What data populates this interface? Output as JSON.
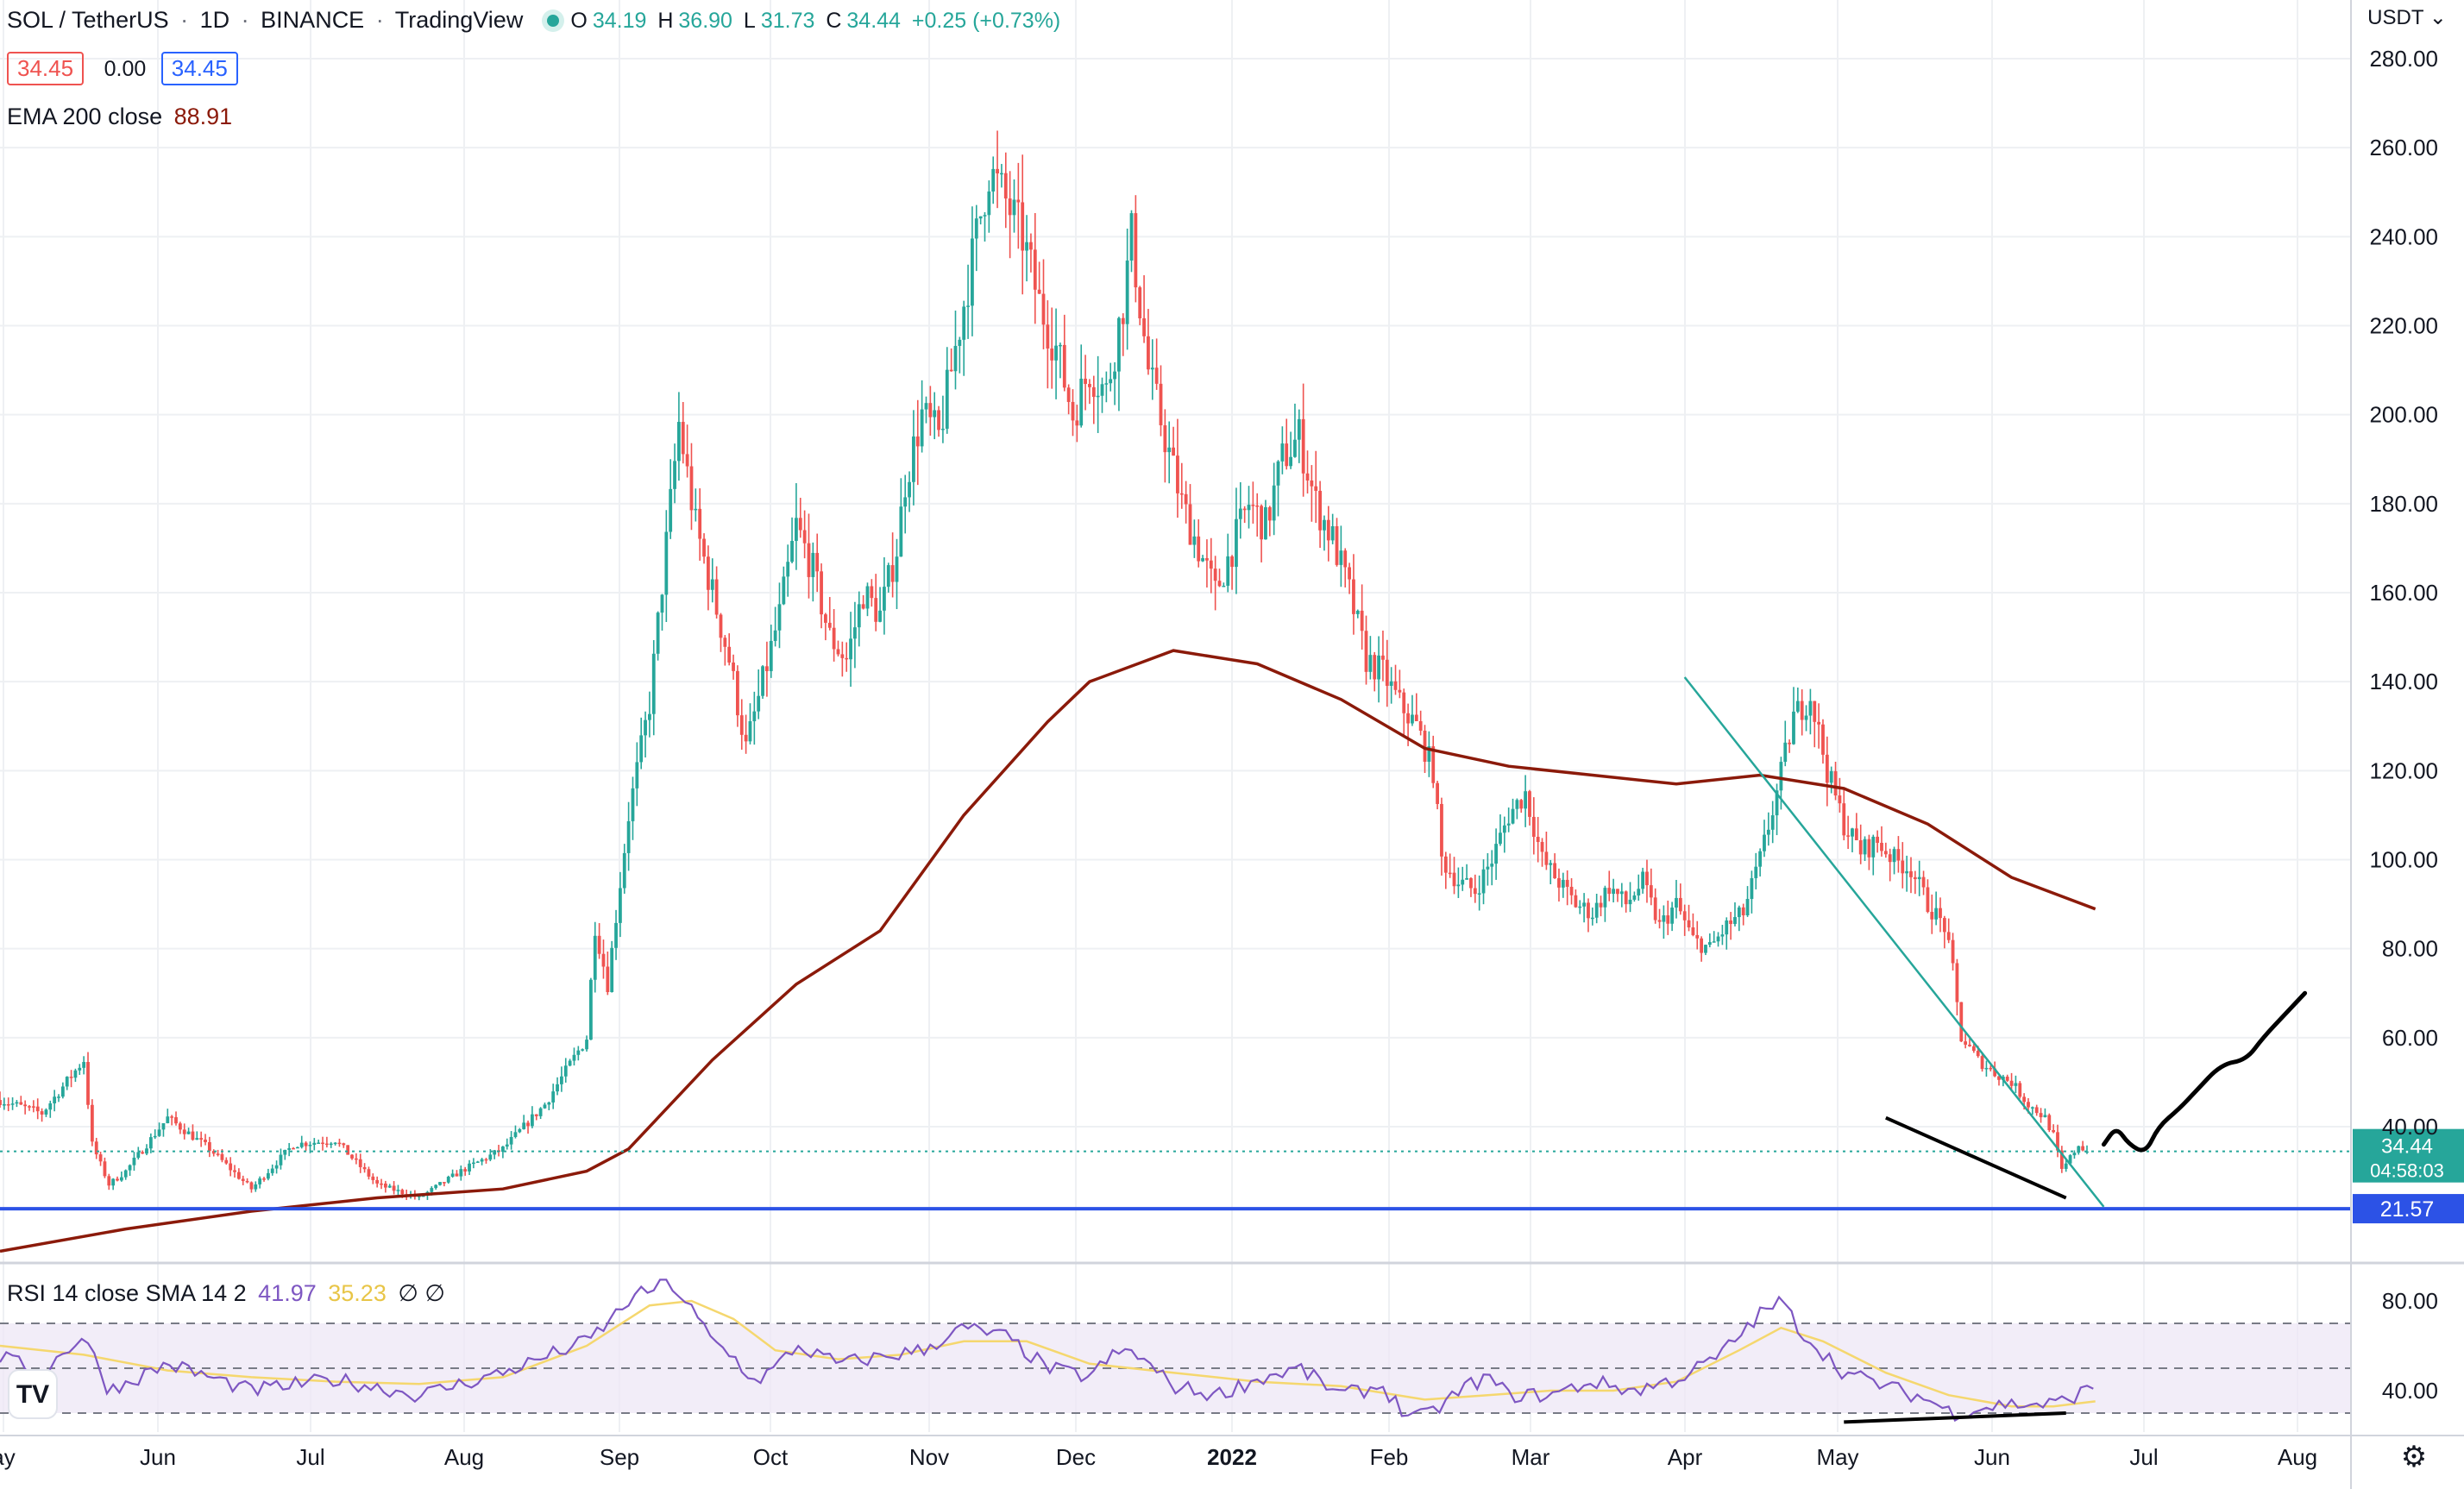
{
  "header": {
    "symbol": "SOL / TetherUS",
    "interval": "1D",
    "exchange": "BINANCE",
    "source": "TradingView",
    "ohlc": {
      "o_label": "O",
      "o": "34.19",
      "h_label": "H",
      "h": "36.90",
      "l_label": "L",
      "l": "31.73",
      "c_label": "C",
      "c": "34.44",
      "change": "+0.25 (+0.73%)"
    },
    "bid": "34.45",
    "spread": "0.00",
    "ask": "34.45"
  },
  "ema_legend": {
    "label": "EMA 200 close",
    "value": "88.91"
  },
  "rsi_legend": {
    "label": "RSI 14 close SMA 14 2",
    "value1": "41.97",
    "value2": "35.23",
    "extra": "∅ ∅"
  },
  "price_axis": {
    "currency": "USDT",
    "current_price": "34.44",
    "countdown": "04:58:03",
    "support_label": "21.57"
  },
  "colors": {
    "up": "#26a69a",
    "down": "#ef5350",
    "ema": "#8b1a0a",
    "support": "#2c52e6",
    "trend": "#26a69a",
    "rsi": "#7e57c2",
    "rsi_sma": "#f5d76e",
    "projection": "#000000"
  },
  "chart_data": [
    {
      "type": "candlestick",
      "title": "SOL / TetherUS 1D BINANCE",
      "x_ticks": [
        "ay",
        "Jun",
        "Jul",
        "Aug",
        "Sep",
        "Oct",
        "Nov",
        "Dec",
        "2022",
        "Feb",
        "Mar",
        "Apr",
        "May",
        "Jun",
        "Jul",
        "Aug"
      ],
      "y_ticks": [
        40,
        60,
        80,
        100,
        120,
        140,
        160,
        180,
        200,
        220,
        240,
        260,
        280
      ],
      "ylim": [
        12,
        288
      ],
      "series": [
        {
          "name": "SOL / TetherUS",
          "close_path": [
            [
              0,
              46
            ],
            [
              10,
              43
            ],
            [
              20,
              55
            ],
            [
              22,
              36
            ],
            [
              26,
              27
            ],
            [
              30,
              30
            ],
            [
              40,
              42
            ],
            [
              50,
              35
            ],
            [
              60,
              26
            ],
            [
              70,
              36
            ],
            [
              80,
              37
            ],
            [
              90,
              27
            ],
            [
              100,
              24
            ],
            [
              110,
              30
            ],
            [
              120,
              35
            ],
            [
              130,
              45
            ],
            [
              140,
              60
            ],
            [
              142,
              85
            ],
            [
              145,
              72
            ],
            [
              150,
              110
            ],
            [
              155,
              135
            ],
            [
              160,
              180
            ],
            [
              162,
              198
            ],
            [
              166,
              175
            ],
            [
              170,
              160
            ],
            [
              174,
              145
            ],
            [
              178,
              125
            ],
            [
              182,
              140
            ],
            [
              186,
              155
            ],
            [
              190,
              175
            ],
            [
              194,
              165
            ],
            [
              198,
              150
            ],
            [
              202,
              145
            ],
            [
              206,
              160
            ],
            [
              210,
              155
            ],
            [
              214,
              170
            ],
            [
              216,
              185
            ],
            [
              220,
              200
            ],
            [
              224,
              195
            ],
            [
              228,
              215
            ],
            [
              232,
              235
            ],
            [
              236,
              255
            ],
            [
              240,
              248
            ],
            [
              244,
              240
            ],
            [
              248,
              225
            ],
            [
              252,
              215
            ],
            [
              256,
              200
            ],
            [
              260,
              210
            ],
            [
              264,
              205
            ],
            [
              268,
              225
            ],
            [
              270,
              240
            ],
            [
              274,
              210
            ],
            [
              278,
              195
            ],
            [
              282,
              180
            ],
            [
              286,
              170
            ],
            [
              290,
              160
            ],
            [
              294,
              170
            ],
            [
              298,
              180
            ],
            [
              302,
              175
            ],
            [
              306,
              190
            ],
            [
              310,
              195
            ],
            [
              314,
              180
            ],
            [
              318,
              172
            ],
            [
              322,
              160
            ],
            [
              326,
              145
            ],
            [
              330,
              142
            ],
            [
              334,
              135
            ],
            [
              338,
              130
            ],
            [
              342,
              120
            ],
            [
              344,
              100
            ],
            [
              348,
              95
            ],
            [
              352,
              93
            ],
            [
              356,
              100
            ],
            [
              360,
              110
            ],
            [
              364,
              115
            ],
            [
              368,
              100
            ],
            [
              372,
              95
            ],
            [
              376,
              90
            ],
            [
              380,
              88
            ],
            [
              384,
              94
            ],
            [
              388,
              90
            ],
            [
              392,
              95
            ],
            [
              396,
              85
            ],
            [
              400,
              90
            ],
            [
              404,
              82
            ],
            [
              408,
              80
            ],
            [
              412,
              85
            ],
            [
              416,
              88
            ],
            [
              420,
              100
            ],
            [
              424,
              115
            ],
            [
              428,
              132
            ],
            [
              432,
              137
            ],
            [
              436,
              120
            ],
            [
              440,
              108
            ],
            [
              444,
              102
            ],
            [
              448,
              104
            ],
            [
              452,
              100
            ],
            [
              456,
              98
            ],
            [
              460,
              90
            ],
            [
              464,
              85
            ],
            [
              466,
              75
            ],
            [
              468,
              60
            ],
            [
              472,
              55
            ],
            [
              476,
              52
            ],
            [
              480,
              50
            ],
            [
              484,
              45
            ],
            [
              488,
              42
            ],
            [
              490,
              38
            ],
            [
              492,
              30
            ],
            [
              494,
              33
            ],
            [
              496,
              36
            ],
            [
              498,
              34.44
            ]
          ]
        },
        {
          "name": "EMA 200 close",
          "values": [
            [
              0,
              12
            ],
            [
              30,
              17
            ],
            [
              60,
              21
            ],
            [
              90,
              24
            ],
            [
              120,
              26
            ],
            [
              140,
              30
            ],
            [
              150,
              35
            ],
            [
              160,
              45
            ],
            [
              170,
              55
            ],
            [
              190,
              72
            ],
            [
              210,
              84
            ],
            [
              230,
              110
            ],
            [
              250,
              131
            ],
            [
              260,
              140
            ],
            [
              280,
              147
            ],
            [
              300,
              144
            ],
            [
              320,
              136
            ],
            [
              340,
              125
            ],
            [
              360,
              121
            ],
            [
              380,
              119
            ],
            [
              400,
              117
            ],
            [
              420,
              119
            ],
            [
              440,
              116
            ],
            [
              460,
              108
            ],
            [
              480,
              96
            ],
            [
              500,
              88.91
            ]
          ]
        }
      ],
      "annotations": {
        "support": 21.57,
        "trendline": [
          [
            402,
            141
          ],
          [
            502,
            22
          ]
        ],
        "divergence": [
          [
            450,
            42
          ],
          [
            493,
            24
          ]
        ],
        "projection": [
          [
            502,
            36
          ],
          [
            505,
            40
          ],
          [
            508,
            36
          ],
          [
            512,
            34
          ],
          [
            515,
            40
          ],
          [
            520,
            44
          ],
          [
            524,
            48
          ],
          [
            530,
            54
          ],
          [
            536,
            55
          ],
          [
            540,
            60
          ],
          [
            545,
            65
          ],
          [
            550,
            70
          ]
        ]
      }
    },
    {
      "type": "line",
      "title": "RSI 14 close SMA 14 2",
      "y_ticks": [
        40,
        80
      ],
      "ylim": [
        20,
        100
      ],
      "bands": [
        30,
        50,
        70
      ],
      "series": [
        {
          "name": "RSI",
          "values": [
            [
              0,
              55
            ],
            [
              10,
              48
            ],
            [
              20,
              65
            ],
            [
              26,
              40
            ],
            [
              40,
              52
            ],
            [
              60,
              40
            ],
            [
              80,
              45
            ],
            [
              100,
              38
            ],
            [
              120,
              48
            ],
            [
              130,
              55
            ],
            [
              140,
              62
            ],
            [
              145,
              70
            ],
            [
              150,
              80
            ],
            [
              155,
              85
            ],
            [
              160,
              88
            ],
            [
              165,
              76
            ],
            [
              170,
              62
            ],
            [
              175,
              55
            ],
            [
              180,
              44
            ],
            [
              185,
              50
            ],
            [
              190,
              60
            ],
            [
              200,
              52
            ],
            [
              210,
              55
            ],
            [
              220,
              58
            ],
            [
              230,
              68
            ],
            [
              240,
              64
            ],
            [
              250,
              50
            ],
            [
              260,
              46
            ],
            [
              265,
              55
            ],
            [
              270,
              58
            ],
            [
              280,
              42
            ],
            [
              290,
              38
            ],
            [
              300,
              45
            ],
            [
              310,
              50
            ],
            [
              320,
              38
            ],
            [
              330,
              42
            ],
            [
              335,
              30
            ],
            [
              340,
              28
            ],
            [
              350,
              42
            ],
            [
              355,
              46
            ],
            [
              360,
              38
            ],
            [
              370,
              38
            ],
            [
              380,
              44
            ],
            [
              390,
              40
            ],
            [
              400,
              45
            ],
            [
              410,
              55
            ],
            [
              420,
              74
            ],
            [
              425,
              80
            ],
            [
              430,
              66
            ],
            [
              440,
              48
            ],
            [
              450,
              42
            ],
            [
              460,
              36
            ],
            [
              466,
              30
            ],
            [
              472,
              32
            ],
            [
              478,
              34
            ],
            [
              485,
              34
            ],
            [
              490,
              34
            ],
            [
              493,
              36
            ],
            [
              500,
              41.97
            ]
          ]
        },
        {
          "name": "SMA",
          "values": [
            [
              0,
              60
            ],
            [
              20,
              56
            ],
            [
              40,
              49
            ],
            [
              60,
              46
            ],
            [
              80,
              44
            ],
            [
              100,
              43
            ],
            [
              120,
              46
            ],
            [
              140,
              60
            ],
            [
              155,
              78
            ],
            [
              165,
              80
            ],
            [
              175,
              72
            ],
            [
              185,
              58
            ],
            [
              200,
              54
            ],
            [
              215,
              56
            ],
            [
              230,
              62
            ],
            [
              245,
              62
            ],
            [
              260,
              52
            ],
            [
              280,
              48
            ],
            [
              300,
              44
            ],
            [
              320,
              42
            ],
            [
              340,
              36
            ],
            [
              355,
              38
            ],
            [
              370,
              40
            ],
            [
              385,
              40
            ],
            [
              400,
              44
            ],
            [
              415,
              58
            ],
            [
              425,
              68
            ],
            [
              435,
              62
            ],
            [
              450,
              48
            ],
            [
              465,
              38
            ],
            [
              480,
              33
            ],
            [
              490,
              33
            ],
            [
              500,
              35.23
            ]
          ]
        }
      ],
      "annotations": {
        "divergence": [
          [
            440,
            26
          ],
          [
            493,
            30
          ]
        ]
      }
    }
  ]
}
